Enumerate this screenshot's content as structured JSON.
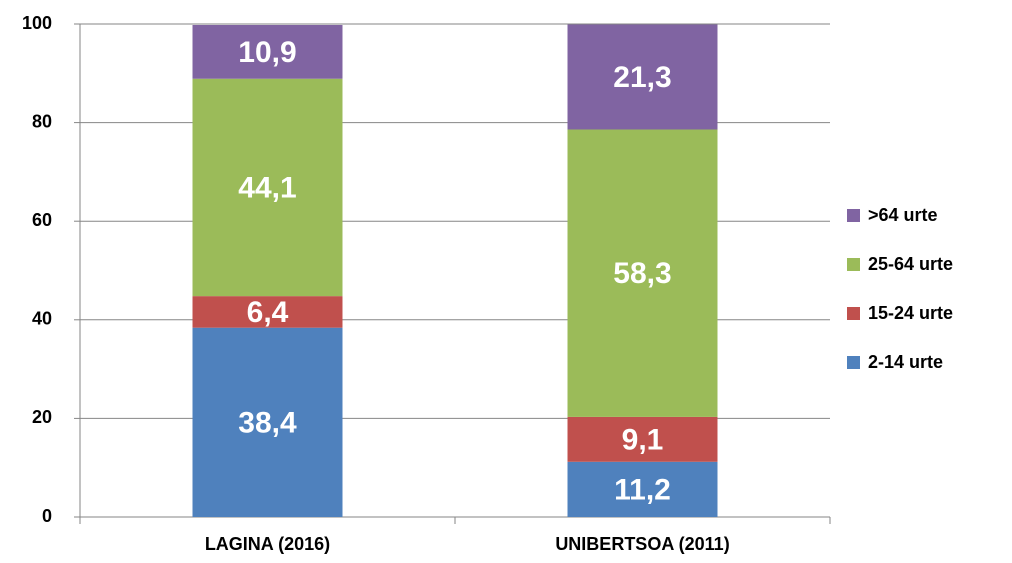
{
  "chart_data": {
    "type": "stacked_bar",
    "categories": [
      "LAGINA (2016)",
      "UNIBERTSOA (2011)"
    ],
    "series": [
      {
        "name": "2-14 urte",
        "color": "#4f81bd",
        "values": [
          38.4,
          11.2
        ],
        "value_labels": [
          "38,4",
          "11,2"
        ]
      },
      {
        "name": "15-24 urte",
        "color": "#c0504d",
        "values": [
          6.4,
          9.1
        ],
        "value_labels": [
          "6,4",
          "9,1"
        ]
      },
      {
        "name": "25-64 urte",
        "color": "#9bbb59",
        "values": [
          44.1,
          58.3
        ],
        "value_labels": [
          "44,1",
          "58,3"
        ]
      },
      {
        "name": ">64 urte",
        "color": "#8064a2",
        "values": [
          10.9,
          21.3
        ],
        "value_labels": [
          "10,9",
          "21,3"
        ]
      }
    ],
    "ylim": [
      0,
      100
    ],
    "yticks": [
      0,
      20,
      40,
      60,
      80,
      100
    ],
    "grid": true,
    "legend": "right"
  }
}
